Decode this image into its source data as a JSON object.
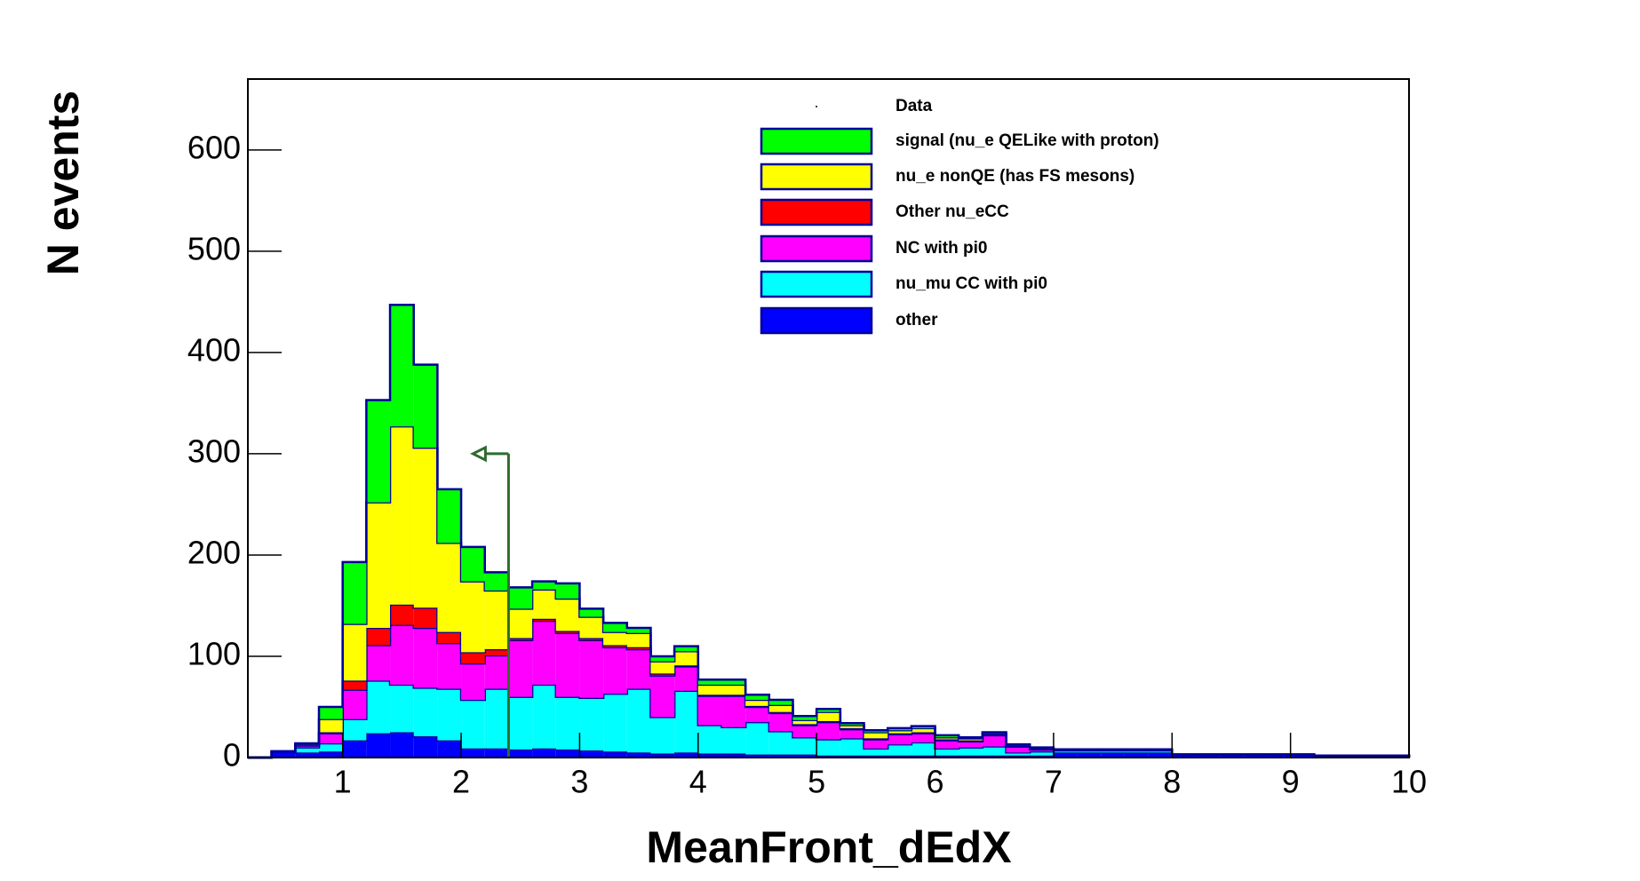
{
  "chart_data": {
    "type": "stacked_histogram",
    "xlabel": "MeanFront_dEdX",
    "ylabel": "N events",
    "data_legend": "Data",
    "bins": [
      0.2,
      0.4,
      0.6,
      0.8,
      1,
      1.2,
      1.4,
      1.6,
      1.8,
      2,
      2.2,
      2.4,
      2.6,
      2.8,
      3,
      3.2,
      3.4,
      3.6,
      3.8,
      4,
      4.2,
      4.4,
      4.6,
      4.8,
      5,
      5.2,
      5.4,
      5.6,
      5.8,
      6,
      6.2,
      6.4,
      6.6,
      6.8,
      7,
      7.2,
      7.4,
      7.6,
      7.8,
      8,
      8.2,
      8.4,
      8.6,
      8.8,
      9,
      9.2,
      9.4,
      9.6,
      9.8,
      10
    ],
    "series": [
      {
        "name": "signal (nu_e QELike with proton)",
        "color": "#00ff00",
        "values": [
          0,
          0,
          1,
          12,
          61,
          101,
          120,
          82,
          53,
          34,
          18,
          21,
          8,
          15,
          8,
          9,
          5,
          5,
          5,
          5,
          5,
          5,
          5,
          4,
          3,
          2,
          2,
          2,
          2,
          2,
          1,
          1,
          1,
          1,
          0,
          0,
          0,
          0,
          0,
          0,
          0,
          0,
          0,
          0,
          0,
          0,
          0,
          0,
          0
        ]
      },
      {
        "name": "nu_e nonQE (has FS mesons)",
        "color": "#ffff00",
        "values": [
          0,
          0,
          1,
          13,
          56,
          124,
          176,
          158,
          88,
          70,
          58,
          29,
          29,
          32,
          21,
          13,
          14,
          12,
          14,
          10,
          10,
          6,
          7,
          4,
          9,
          3,
          6,
          3,
          4,
          2,
          2,
          1,
          1,
          1,
          0,
          0,
          0,
          0,
          0,
          0,
          0,
          0,
          0,
          0,
          0,
          0,
          0,
          0,
          0
        ]
      },
      {
        "name": "Other nu_eCC",
        "color": "#ff0000",
        "values": [
          0,
          0,
          0,
          1,
          9,
          17,
          20,
          20,
          11,
          11,
          6,
          2,
          2,
          2,
          2,
          2,
          2,
          2,
          1,
          1,
          1,
          1,
          1,
          1,
          1,
          1,
          1,
          1,
          1,
          1,
          1,
          1,
          0,
          0,
          0,
          0,
          0,
          0,
          0,
          0,
          0,
          0,
          0,
          0,
          0,
          0,
          0,
          0,
          0
        ]
      },
      {
        "name": "NC with pi0",
        "color": "#ff00ff",
        "values": [
          0,
          0,
          2,
          10,
          29,
          35,
          59,
          59,
          45,
          36,
          33,
          56,
          63,
          63,
          57,
          46,
          39,
          41,
          24,
          29,
          31,
          15,
          18,
          12,
          17,
          9,
          9,
          10,
          9,
          8,
          6,
          11,
          6,
          2,
          1,
          1,
          1,
          1,
          1,
          0,
          0,
          0,
          0,
          0,
          0,
          0,
          0,
          0,
          0
        ]
      },
      {
        "name": "nu_mu CC with pi0",
        "color": "#00ffff",
        "values": [
          0,
          0,
          5,
          8,
          21,
          52,
          47,
          48,
          51,
          48,
          59,
          52,
          63,
          52,
          52,
          57,
          63,
          36,
          61,
          28,
          26,
          32,
          23,
          17,
          16,
          17,
          7,
          11,
          13,
          7,
          8,
          9,
          3,
          4,
          2,
          2,
          2,
          2,
          2,
          0,
          0,
          0,
          0,
          0,
          0,
          0,
          0,
          0,
          0
        ]
      },
      {
        "name": "other",
        "color": "#0000ff",
        "values": [
          0,
          6,
          5,
          6,
          17,
          24,
          25,
          21,
          17,
          9,
          9,
          8,
          9,
          8,
          7,
          6,
          5,
          4,
          5,
          4,
          4,
          3,
          3,
          3,
          2,
          2,
          2,
          2,
          2,
          2,
          2,
          2,
          2,
          2,
          5,
          5,
          5,
          5,
          5,
          3,
          3,
          3,
          3,
          3,
          3,
          2,
          2,
          2,
          2
        ]
      }
    ],
    "outline_color": "#000099",
    "stacked": true,
    "xlim": [
      0.2,
      10
    ],
    "xticks": [
      1,
      2,
      3,
      4,
      5,
      6,
      7,
      8,
      9,
      10
    ],
    "ylim": [
      0,
      670
    ],
    "yticks": [
      0,
      100,
      200,
      300,
      400,
      500,
      600
    ],
    "cut": {
      "x": 2.4,
      "y": 300,
      "arrow_x": 2.1,
      "color": "#2e6b2e"
    }
  }
}
